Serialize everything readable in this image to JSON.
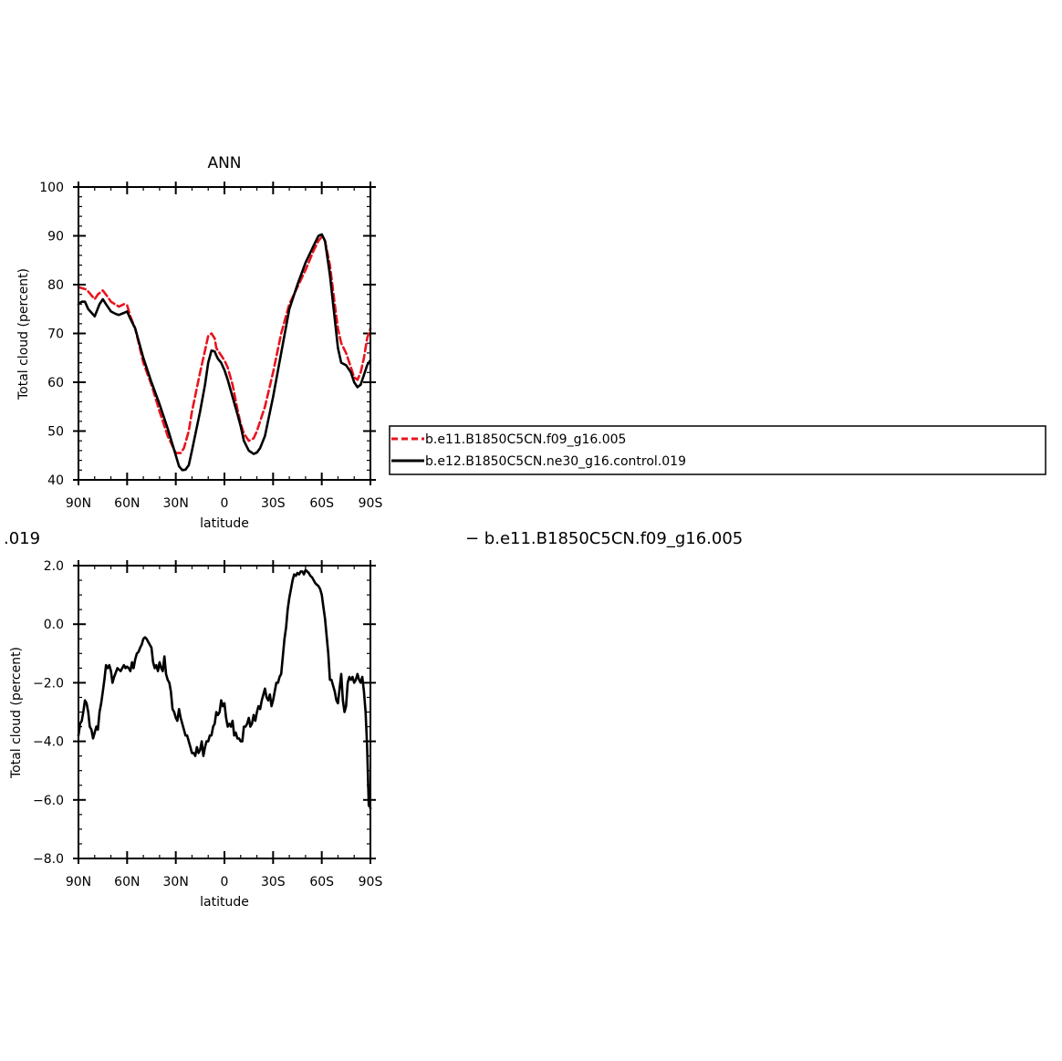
{
  "header": {
    "left_text": ".019",
    "right_text": "− b.e11.B1850C5CN.f09_g16.005"
  },
  "chart_data": [
    {
      "type": "line",
      "title": "ANN",
      "xlabel": "latitude",
      "ylabel": "Total cloud (percent)",
      "xlim": [
        90,
        -90
      ],
      "ylim": [
        40,
        100
      ],
      "xticks": [
        90,
        60,
        30,
        0,
        -30,
        -60,
        -90
      ],
      "xtick_labels": [
        "90N",
        "60N",
        "30N",
        "0",
        "30S",
        "60S",
        "90S"
      ],
      "yticks": [
        40,
        50,
        60,
        70,
        80,
        90,
        100
      ],
      "ytick_labels": [
        "40",
        "50",
        "60",
        "70",
        "80",
        "90",
        "100"
      ],
      "legend": {
        "placement": "right"
      },
      "series": [
        {
          "name": "b.e11.B1850C5CN.f09_g16.005",
          "color": "#e8141e",
          "dash": true,
          "x": [
            90,
            85,
            80,
            78,
            75,
            72,
            70,
            65,
            62,
            60,
            58,
            55,
            50,
            45,
            40,
            35,
            30,
            27,
            25,
            22,
            20,
            15,
            12,
            10,
            8,
            6,
            5,
            4,
            2,
            0,
            -2,
            -5,
            -8,
            -10,
            -12,
            -15,
            -18,
            -20,
            -22,
            -25,
            -30,
            -35,
            -40,
            -45,
            -50,
            -55,
            -58,
            -60,
            -62,
            -65,
            -68,
            -70,
            -72,
            -75,
            -78,
            -80,
            -82,
            -84,
            -86,
            -88,
            -90
          ],
          "y": [
            79.5,
            79,
            77,
            78,
            78.8,
            77.5,
            76.5,
            75.5,
            76,
            75.8,
            73.5,
            71,
            64,
            59.5,
            54,
            49,
            45.5,
            45.5,
            46.5,
            50,
            54,
            62,
            66.5,
            69.5,
            70,
            69,
            67,
            66.5,
            65.5,
            64.5,
            63,
            59.5,
            54.5,
            51.5,
            49.5,
            48,
            48.5,
            50,
            52,
            55,
            62,
            70,
            76,
            79.5,
            83,
            87,
            89,
            89.8,
            89,
            84,
            76,
            71,
            68,
            66,
            63,
            61,
            60.5,
            62,
            65,
            69,
            71
          ]
        },
        {
          "name": "b.e12.B1850C5CN.ne30_g16.control.019",
          "color": "#000000",
          "dash": false,
          "x": [
            90,
            88,
            86,
            84,
            80,
            77,
            75,
            73,
            70,
            67,
            65,
            62,
            60,
            58,
            55,
            50,
            45,
            40,
            35,
            30,
            28,
            26,
            24,
            22,
            20,
            15,
            12,
            10,
            8,
            6,
            5,
            4,
            2,
            0,
            -2,
            -5,
            -8,
            -10,
            -12,
            -15,
            -18,
            -20,
            -22,
            -25,
            -30,
            -35,
            -40,
            -45,
            -50,
            -55,
            -58,
            -60,
            -62,
            -65,
            -68,
            -70,
            -72,
            -75,
            -78,
            -80,
            -82,
            -84,
            -86,
            -88,
            -90
          ],
          "y": [
            76,
            76.5,
            76.5,
            75,
            73.5,
            76,
            77,
            76,
            74.5,
            74,
            73.8,
            74.2,
            74.5,
            73,
            71,
            65,
            60,
            55.5,
            50.5,
            45,
            42.8,
            42,
            42.1,
            43,
            46,
            54,
            59.5,
            64,
            66.5,
            66.3,
            65.5,
            64.8,
            64,
            62.5,
            60.5,
            57,
            53.5,
            51,
            48,
            46,
            45.3,
            45.6,
            46.5,
            49,
            57,
            66,
            75,
            80,
            84.5,
            88,
            90,
            90.3,
            89,
            82,
            73,
            67,
            64,
            63.5,
            62,
            60,
            59,
            59.5,
            61.5,
            63.5,
            64.5
          ]
        }
      ]
    },
    {
      "type": "line",
      "title": "",
      "xlabel": "latitude",
      "ylabel": "Total cloud (percent)",
      "xlim": [
        90,
        -90
      ],
      "ylim": [
        -8,
        2
      ],
      "xticks": [
        90,
        60,
        30,
        0,
        -30,
        -60,
        -90
      ],
      "xtick_labels": [
        "90N",
        "60N",
        "30N",
        "0",
        "30S",
        "60S",
        "90S"
      ],
      "yticks": [
        -8,
        -6,
        -4,
        -2,
        0,
        2
      ],
      "ytick_labels": [
        "−8.0",
        "−6.0",
        "−4.0",
        "−2.0",
        "0.0",
        "2.0"
      ],
      "series": [
        {
          "name": "",
          "color": "#000000",
          "dash": false,
          "x": [
            90,
            89,
            88,
            87,
            86,
            85,
            84,
            83,
            82,
            81,
            80,
            79,
            78,
            77,
            76,
            75,
            74,
            73,
            72,
            71,
            70,
            69,
            68,
            66,
            64,
            62,
            61,
            60,
            59,
            58,
            57,
            56,
            55,
            54,
            53,
            52,
            51,
            50,
            49,
            48,
            47,
            46,
            45,
            44,
            43,
            42,
            41,
            40,
            39,
            38,
            37,
            36,
            35,
            34,
            33,
            32,
            31,
            30,
            29,
            28,
            27,
            26,
            25,
            24,
            23,
            22,
            21,
            20,
            19,
            18,
            17,
            16,
            15,
            14,
            13,
            12,
            11,
            10,
            9,
            8,
            7,
            6,
            5,
            4,
            3,
            2,
            1,
            0,
            -1,
            -2,
            -3,
            -4,
            -5,
            -6,
            -7,
            -8,
            -9,
            -10,
            -11,
            -12,
            -13,
            -14,
            -15,
            -16,
            -17,
            -18,
            -19,
            -20,
            -21,
            -22,
            -23,
            -24,
            -25,
            -26,
            -27,
            -28,
            -29,
            -30,
            -31,
            -32,
            -33,
            -34,
            -35,
            -36,
            -37,
            -38,
            -39,
            -40,
            -41,
            -42,
            -43,
            -44,
            -45,
            -46,
            -47,
            -48,
            -49,
            -50,
            -51,
            -52,
            -53,
            -54,
            -55,
            -56,
            -57,
            -58,
            -59,
            -60,
            -61,
            -62,
            -63,
            -64,
            -65,
            -66,
            -67,
            -68,
            -69,
            -70,
            -71,
            -72,
            -73,
            -74,
            -75,
            -76,
            -77,
            -78,
            -79,
            -80,
            -81,
            -82,
            -83,
            -84,
            -85,
            -86,
            -87,
            -88,
            -89,
            -89.5,
            -90
          ],
          "y": [
            -3.8,
            -3.4,
            -3.3,
            -3.0,
            -2.6,
            -2.7,
            -3.0,
            -3.5,
            -3.6,
            -3.9,
            -3.7,
            -3.5,
            -3.6,
            -3.0,
            -2.7,
            -2.3,
            -1.9,
            -1.4,
            -1.5,
            -1.4,
            -1.6,
            -2.0,
            -1.8,
            -1.5,
            -1.6,
            -1.4,
            -1.5,
            -1.45,
            -1.5,
            -1.6,
            -1.3,
            -1.5,
            -1.2,
            -1.0,
            -0.95,
            -0.8,
            -0.7,
            -0.5,
            -0.45,
            -0.5,
            -0.6,
            -0.7,
            -0.8,
            -1.3,
            -1.5,
            -1.4,
            -1.6,
            -1.3,
            -1.5,
            -1.6,
            -1.1,
            -1.7,
            -1.9,
            -2.0,
            -2.3,
            -2.9,
            -3.0,
            -3.2,
            -3.3,
            -2.9,
            -3.2,
            -3.4,
            -3.6,
            -3.8,
            -3.8,
            -4.0,
            -4.2,
            -4.4,
            -4.4,
            -4.5,
            -4.2,
            -4.4,
            -4.3,
            -4.0,
            -4.5,
            -4.2,
            -4.0,
            -4.0,
            -3.8,
            -3.8,
            -3.5,
            -3.4,
            -3.0,
            -3.1,
            -3.0,
            -2.6,
            -2.8,
            -2.7,
            -3.2,
            -3.5,
            -3.4,
            -3.5,
            -3.3,
            -3.8,
            -3.7,
            -3.9,
            -3.9,
            -4.0,
            -4.0,
            -3.5,
            -3.5,
            -3.4,
            -3.2,
            -3.5,
            -3.4,
            -3.1,
            -3.3,
            -3.0,
            -2.8,
            -2.9,
            -2.6,
            -2.4,
            -2.2,
            -2.5,
            -2.6,
            -2.4,
            -2.8,
            -2.6,
            -2.3,
            -2.0,
            -2.0,
            -1.8,
            -1.7,
            -1.1,
            -0.5,
            -0.1,
            0.5,
            0.9,
            1.2,
            1.5,
            1.7,
            1.65,
            1.75,
            1.7,
            1.8,
            1.8,
            1.7,
            1.85,
            1.8,
            1.75,
            1.65,
            1.6,
            1.5,
            1.4,
            1.35,
            1.3,
            1.2,
            1.0,
            0.6,
            0.2,
            -0.4,
            -1.0,
            -1.9,
            -1.9,
            -2.1,
            -2.3,
            -2.6,
            -2.7,
            -2.2,
            -1.7,
            -2.6,
            -3.0,
            -2.8,
            -2.0,
            -1.8,
            -1.9,
            -1.8,
            -2.0,
            -1.9,
            -1.7,
            -1.9,
            -2.0,
            -1.8,
            -2.3,
            -3.0,
            -4.2,
            -6.2,
            -6.1,
            -6.3
          ]
        }
      ]
    }
  ]
}
